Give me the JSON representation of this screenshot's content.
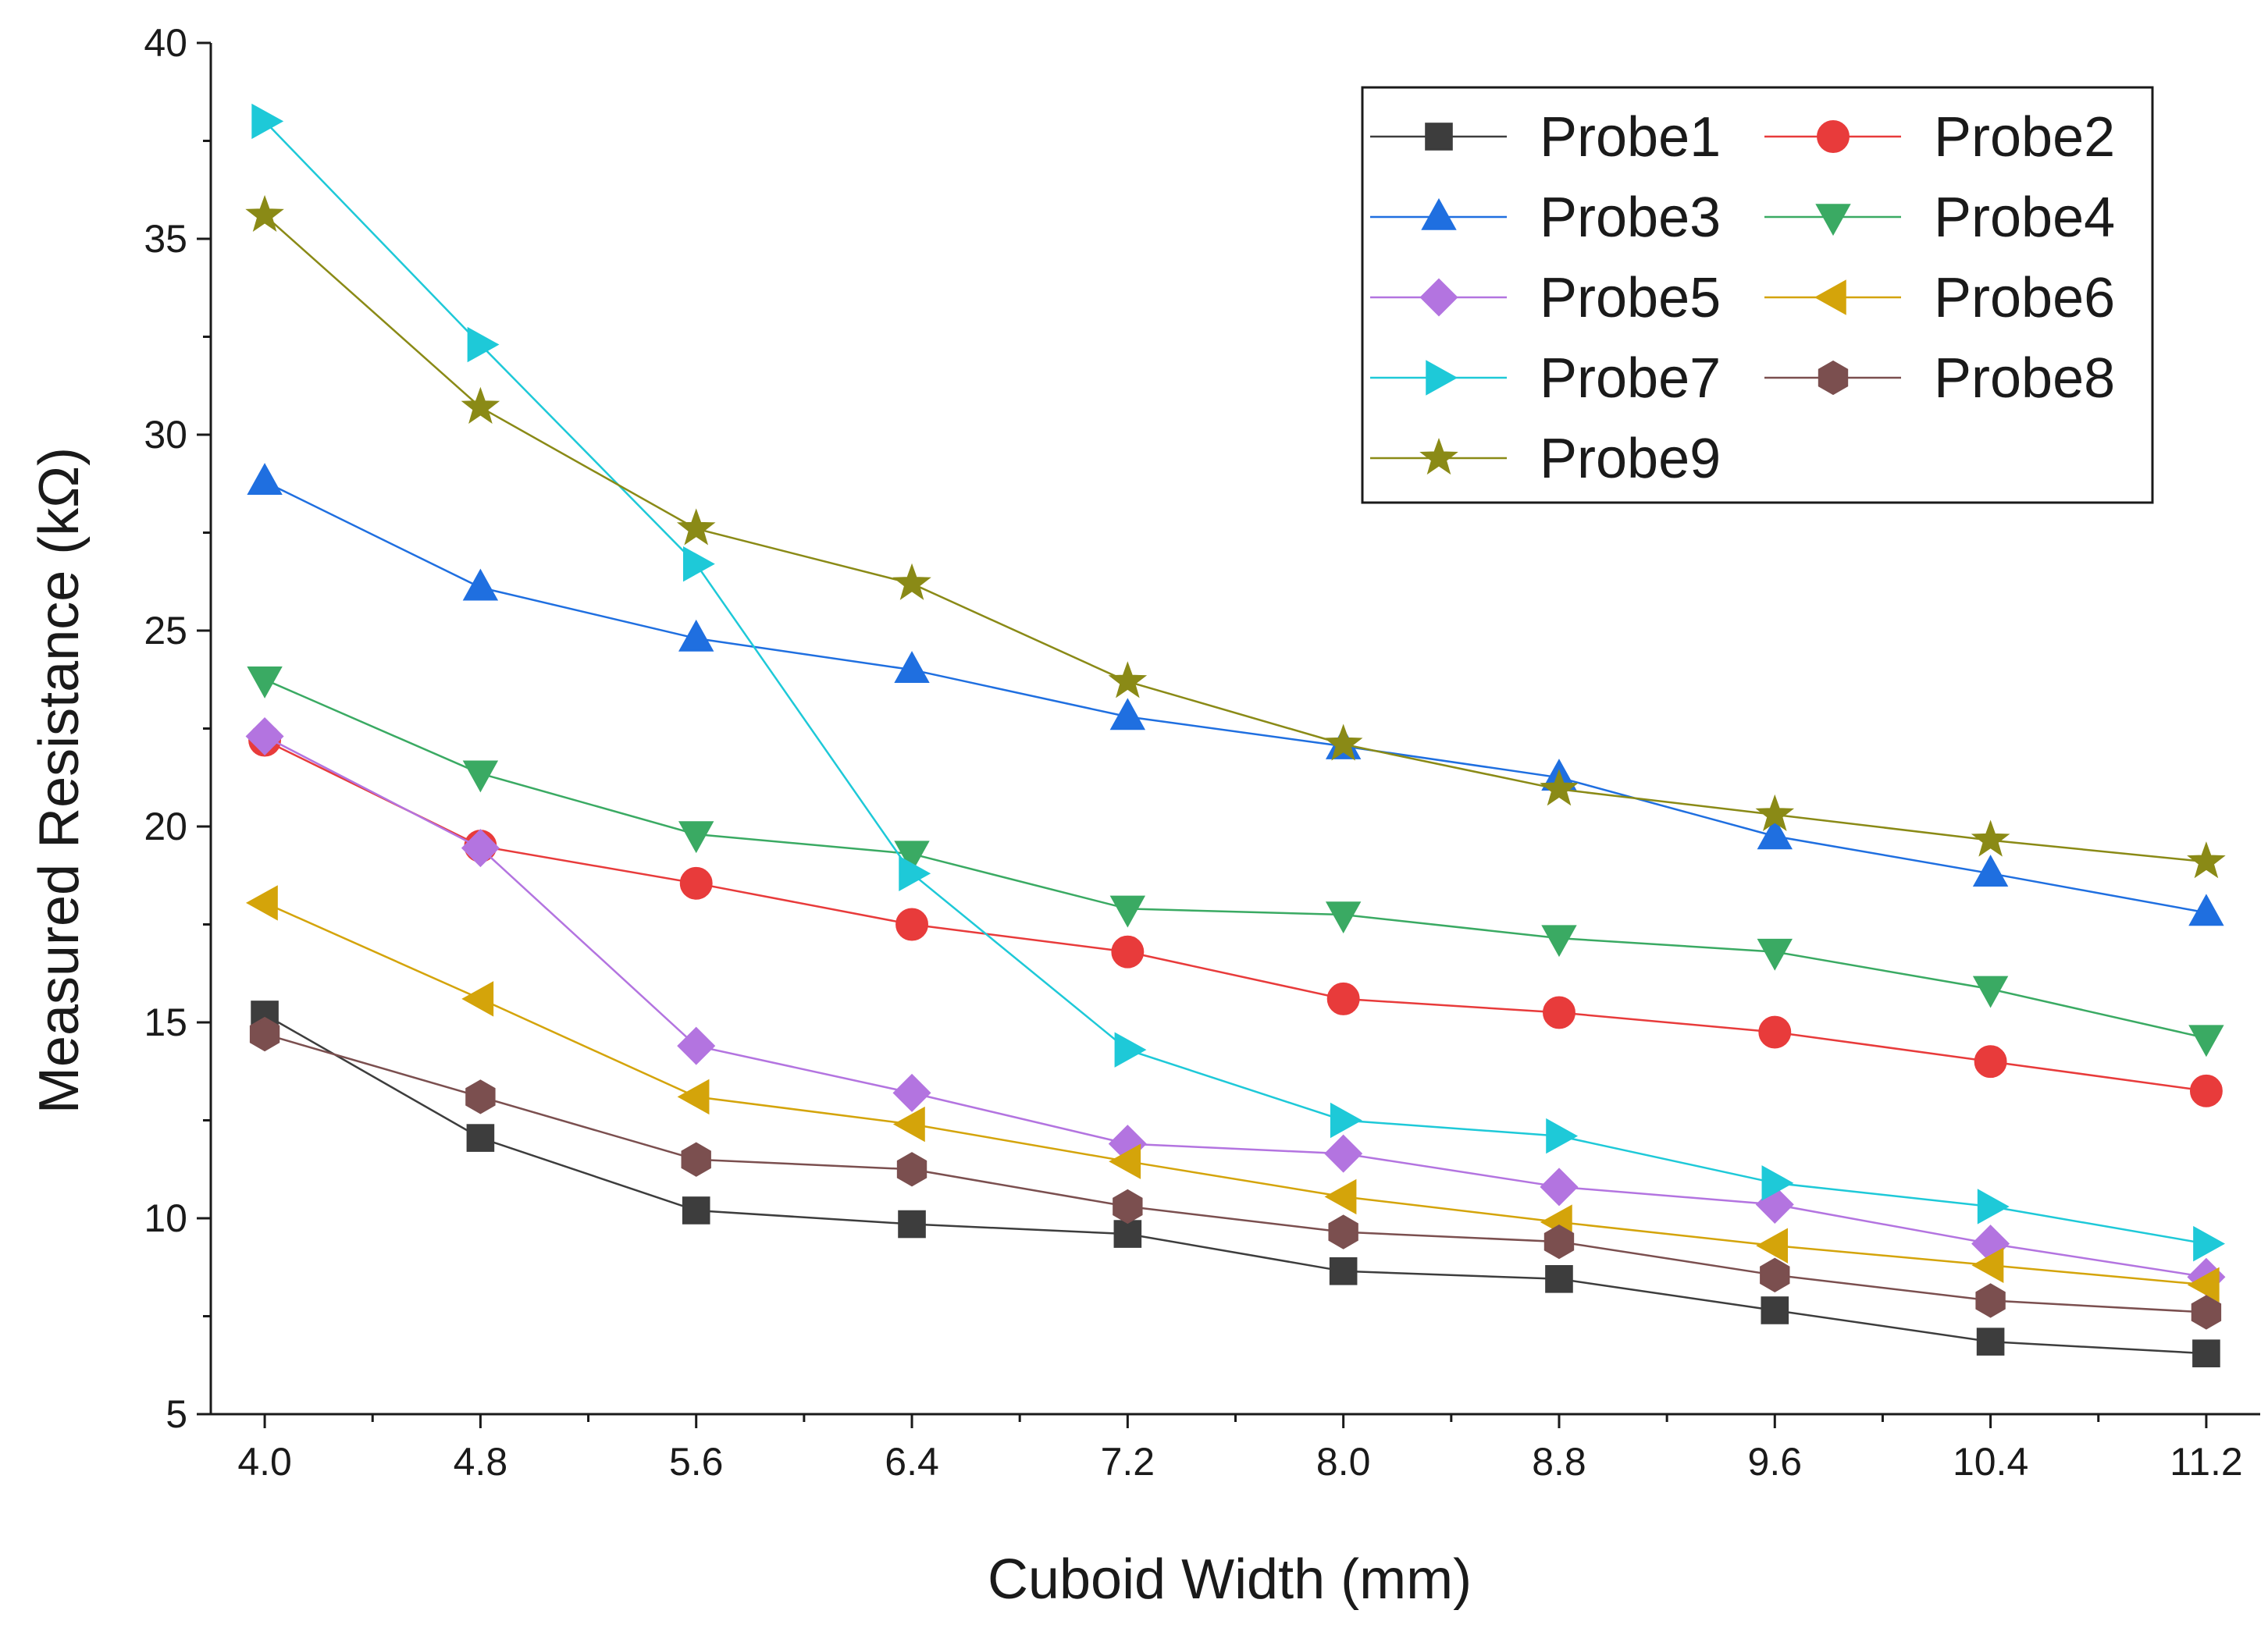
{
  "chart_data": {
    "type": "line",
    "title": "",
    "xlabel": "Cuboid Width (mm)",
    "ylabel": "Measured Resistance (kΩ)",
    "xlim": [
      3.8,
      11.4
    ],
    "ylim": [
      5,
      40
    ],
    "x": [
      4.0,
      4.8,
      5.6,
      6.4,
      7.2,
      8.0,
      8.8,
      9.6,
      10.4,
      11.2
    ],
    "x_tick_labels": [
      "4.0",
      "4.8",
      "5.6",
      "6.4",
      "7.2",
      "8.0",
      "8.8",
      "9.6",
      "10.4",
      "11.2"
    ],
    "y_ticks": [
      5,
      10,
      15,
      20,
      25,
      30,
      35,
      40
    ],
    "y_tick_labels": [
      "5",
      "10",
      "15",
      "20",
      "25",
      "30",
      "35",
      "40"
    ],
    "grid": false,
    "legend_position": "top-right",
    "series": [
      {
        "name": "Probe1",
        "marker": "square",
        "color": "#3d3d3d",
        "values": [
          15.2,
          12.05,
          10.2,
          9.85,
          9.6,
          8.65,
          8.45,
          7.65,
          6.85,
          6.55
        ]
      },
      {
        "name": "Probe2",
        "marker": "circle",
        "color": "#e83b3b",
        "values": [
          22.2,
          19.5,
          18.55,
          17.5,
          16.8,
          15.6,
          15.25,
          14.75,
          14.0,
          13.25
        ]
      },
      {
        "name": "Probe3",
        "marker": "triangle-up",
        "color": "#1f6fe0",
        "values": [
          28.8,
          26.1,
          24.8,
          24.0,
          22.8,
          22.05,
          21.25,
          19.75,
          18.8,
          17.8
        ]
      },
      {
        "name": "Probe4",
        "marker": "triangle-down",
        "color": "#3aaa63",
        "values": [
          23.75,
          21.35,
          19.8,
          19.3,
          17.9,
          17.75,
          17.15,
          16.8,
          15.85,
          14.6
        ]
      },
      {
        "name": "Probe5",
        "marker": "diamond",
        "color": "#b374e0",
        "values": [
          22.3,
          19.45,
          14.4,
          13.2,
          11.9,
          11.65,
          10.8,
          10.35,
          9.35,
          8.5
        ]
      },
      {
        "name": "Probe6",
        "marker": "triangle-left",
        "color": "#d4a40a",
        "values": [
          18.05,
          15.6,
          13.1,
          12.4,
          11.45,
          10.55,
          9.9,
          9.3,
          8.8,
          8.3
        ]
      },
      {
        "name": "Probe7",
        "marker": "triangle-right",
        "color": "#1ec9d8",
        "values": [
          38.0,
          32.3,
          26.7,
          18.8,
          14.3,
          12.5,
          12.1,
          10.9,
          10.3,
          9.35
        ]
      },
      {
        "name": "Probe8",
        "marker": "hexagon",
        "color": "#7b4f4f",
        "values": [
          14.7,
          13.1,
          11.5,
          11.25,
          10.3,
          9.65,
          9.4,
          8.55,
          7.9,
          7.6
        ]
      },
      {
        "name": "Probe9",
        "marker": "star",
        "color": "#8a8a16",
        "values": [
          35.6,
          30.7,
          27.6,
          26.2,
          23.7,
          22.1,
          20.95,
          20.3,
          19.65,
          19.1
        ]
      }
    ]
  }
}
